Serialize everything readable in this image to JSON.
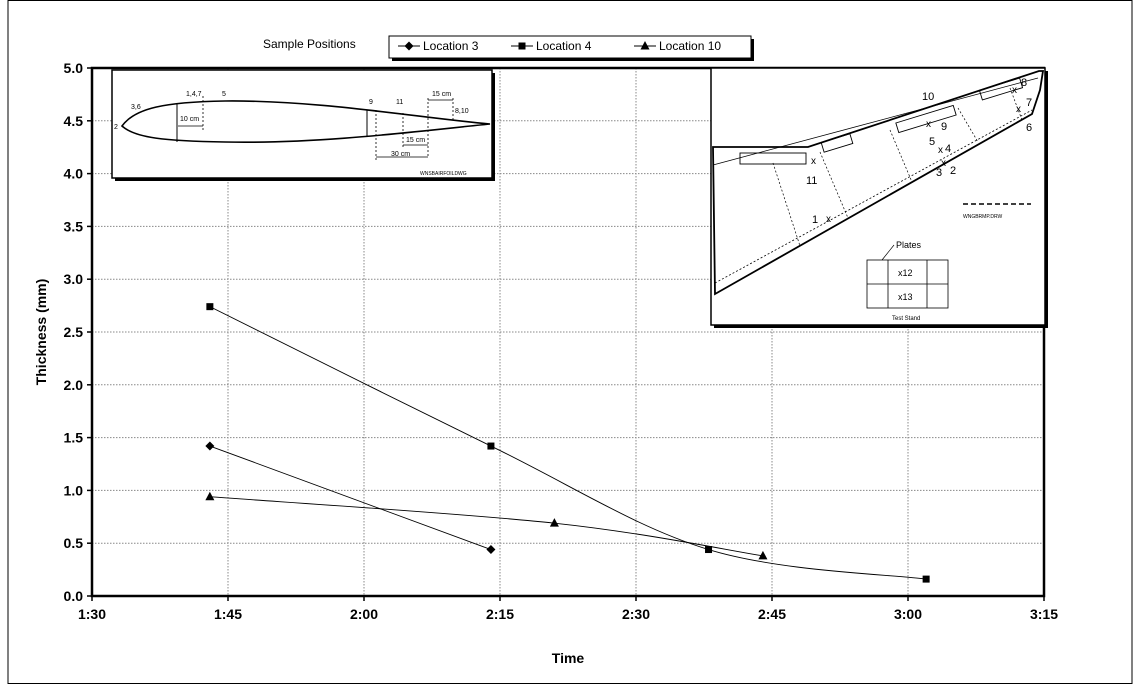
{
  "chart_data": {
    "type": "line",
    "title": "",
    "xlabel": "Time",
    "ylabel": "Thickness (mm)",
    "x_ticks": [
      "1:30",
      "1:45",
      "2:00",
      "2:15",
      "2:30",
      "2:45",
      "3:00",
      "3:15"
    ],
    "y_ticks": [
      "0.0",
      "0.5",
      "1.0",
      "1.5",
      "2.0",
      "2.5",
      "3.0",
      "3.5",
      "4.0",
      "4.5",
      "5.0"
    ],
    "xlim": [
      "1:30",
      "3:15"
    ],
    "ylim": [
      0,
      5
    ],
    "grid": true,
    "legend": {
      "title": "Sample Positions",
      "placement": "top-center"
    },
    "series": [
      {
        "name": "Location 3",
        "marker": "diamond",
        "x": [
          "1:43",
          "2:14"
        ],
        "y": [
          1.42,
          0.44
        ]
      },
      {
        "name": "Location 4",
        "marker": "square",
        "x": [
          "1:43",
          "2:14",
          "2:38",
          "3:02"
        ],
        "y": [
          2.74,
          1.42,
          0.44,
          0.16
        ]
      },
      {
        "name": "Location 10",
        "marker": "triangle",
        "x": [
          "1:43",
          "2:21",
          "2:44"
        ],
        "y": [
          0.94,
          0.69,
          0.38
        ]
      }
    ]
  },
  "insets": {
    "airfoil": {
      "labels": [
        "2",
        "3,6",
        "1,4,7",
        "5",
        "9",
        "11",
        "15 cm",
        "8,10",
        "10 cm",
        "15 cm",
        "30 cm"
      ],
      "caption": "WNSBAIRFOILDWG"
    },
    "wing": {
      "points": [
        "10",
        "8",
        "7",
        "6",
        "9",
        "5",
        "4",
        "3",
        "2",
        "11",
        "1"
      ],
      "plates_label": "Plates",
      "plate_points": [
        "x12",
        "x13"
      ],
      "test_stand_label": "Test Stand",
      "scale_caption": "WNGBRMP.DRW"
    }
  }
}
